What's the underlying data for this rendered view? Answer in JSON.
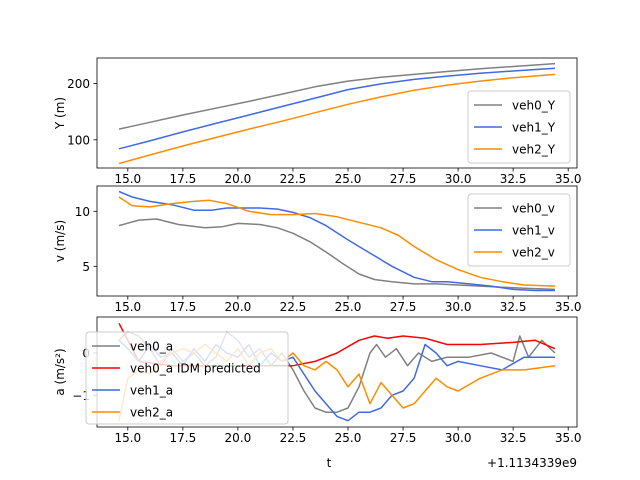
{
  "chart_data": [
    {
      "type": "line",
      "ylabel": "Y (m)",
      "xlim": [
        13.6,
        35.4
      ],
      "ylim": [
        50,
        245
      ],
      "xticks": [
        15.0,
        17.5,
        20.0,
        22.5,
        25.0,
        27.5,
        30.0,
        32.5,
        35.0
      ],
      "xticklabels": [
        "15.0",
        "17.5",
        "20.0",
        "22.5",
        "25.0",
        "27.5",
        "30.0",
        "32.5",
        "35.0"
      ],
      "show_xticklabels": true,
      "yticks": [
        100,
        200
      ],
      "yticklabels": [
        "100",
        "200"
      ],
      "legend_position": "lower-right",
      "series": [
        {
          "name": "veh0_Y",
          "color": "#808080",
          "x": [
            14.6,
            16.0,
            17.5,
            19.0,
            20.5,
            22.0,
            23.5,
            25.0,
            26.5,
            28.0,
            29.5,
            31.0,
            32.5,
            34.4
          ],
          "y": [
            119,
            131,
            144,
            156,
            168,
            181,
            194,
            204,
            211,
            216,
            221,
            226,
            230,
            235
          ]
        },
        {
          "name": "veh1_Y",
          "color": "#4169e1",
          "x": [
            14.6,
            16.0,
            17.5,
            19.0,
            20.5,
            22.0,
            23.5,
            25.0,
            26.5,
            28.0,
            29.5,
            31.0,
            32.5,
            34.4
          ],
          "y": [
            84,
            98,
            114,
            129,
            144,
            159,
            174,
            189,
            199,
            207,
            213,
            218,
            222,
            227
          ]
        },
        {
          "name": "veh2_Y",
          "color": "#ff8c00",
          "x": [
            14.6,
            16.0,
            17.5,
            19.0,
            20.5,
            22.0,
            23.5,
            25.0,
            26.5,
            28.0,
            29.5,
            31.0,
            32.5,
            34.4
          ],
          "y": [
            58,
            73,
            89,
            104,
            119,
            133,
            148,
            163,
            176,
            188,
            197,
            204,
            210,
            216
          ]
        }
      ]
    },
    {
      "type": "line",
      "ylabel": "v (m/s)",
      "xlim": [
        13.6,
        35.4
      ],
      "ylim": [
        2.3,
        12.3
      ],
      "xticks": [
        15.0,
        17.5,
        20.0,
        22.5,
        25.0,
        27.5,
        30.0,
        32.5,
        35.0
      ],
      "xticklabels": [
        "15.0",
        "17.5",
        "20.0",
        "22.5",
        "25.0",
        "27.5",
        "30.0",
        "32.5",
        "35.0"
      ],
      "show_xticklabels": true,
      "yticks": [
        5,
        10
      ],
      "yticklabels": [
        "5",
        "10"
      ],
      "legend_position": "upper-right",
      "series": [
        {
          "name": "veh0_v",
          "color": "#808080",
          "x": [
            14.6,
            15.5,
            16.3,
            17.3,
            18.5,
            19.3,
            20.0,
            21.0,
            21.8,
            22.5,
            23.3,
            24.0,
            24.8,
            25.5,
            26.2,
            27.0,
            28.0,
            29.0,
            30.0,
            31.0,
            32.0,
            33.0,
            34.4
          ],
          "y": [
            8.7,
            9.2,
            9.3,
            8.8,
            8.5,
            8.6,
            8.9,
            8.8,
            8.5,
            8.0,
            7.2,
            6.3,
            5.2,
            4.3,
            3.8,
            3.6,
            3.4,
            3.4,
            3.3,
            3.2,
            3.1,
            3.0,
            2.9
          ]
        },
        {
          "name": "veh1_v",
          "color": "#4169e1",
          "x": [
            14.6,
            15.2,
            16.0,
            17.0,
            18.0,
            18.8,
            19.5,
            20.0,
            21.0,
            21.8,
            22.5,
            23.3,
            24.0,
            25.0,
            26.0,
            27.0,
            28.0,
            28.8,
            29.5,
            30.5,
            31.5,
            32.5,
            33.5,
            34.4
          ],
          "y": [
            11.8,
            11.3,
            10.9,
            10.6,
            10.1,
            10.1,
            10.3,
            10.3,
            10.3,
            10.2,
            9.9,
            9.4,
            8.7,
            7.4,
            6.2,
            5.0,
            4.0,
            3.6,
            3.6,
            3.4,
            3.2,
            2.9,
            2.8,
            2.8
          ]
        },
        {
          "name": "veh2_v",
          "color": "#ff8c00",
          "x": [
            14.6,
            15.2,
            16.0,
            17.0,
            18.0,
            18.7,
            19.5,
            20.5,
            21.5,
            22.5,
            23.5,
            24.5,
            25.5,
            26.5,
            27.3,
            28.0,
            29.0,
            30.0,
            31.0,
            32.0,
            33.0,
            34.4
          ],
          "y": [
            11.3,
            10.5,
            10.4,
            10.7,
            10.9,
            11.0,
            10.7,
            10.0,
            9.7,
            9.7,
            9.8,
            9.5,
            9.0,
            8.5,
            7.8,
            6.8,
            5.6,
            4.7,
            4.0,
            3.6,
            3.3,
            3.2
          ]
        }
      ]
    },
    {
      "type": "line",
      "ylabel": "a (m/s²)",
      "xlabel": "t",
      "offset_text": "+1.1134339e9",
      "xlim": [
        13.6,
        35.4
      ],
      "ylim": [
        -1.75,
        0.85
      ],
      "xticks": [
        15.0,
        17.5,
        20.0,
        22.5,
        25.0,
        27.5,
        30.0,
        32.5,
        35.0
      ],
      "xticklabels": [
        "15.0",
        "17.5",
        "20.0",
        "22.5",
        "25.0",
        "27.5",
        "30.0",
        "32.5",
        "35.0"
      ],
      "show_xticklabels": true,
      "yticks": [
        -1,
        0
      ],
      "yticklabels": [
        "−1",
        "0"
      ],
      "legend_position": "left",
      "series": [
        {
          "name": "veh0_a",
          "color": "#808080",
          "x": [
            14.6,
            15.0,
            15.5,
            16.0,
            16.5,
            17.0,
            17.5,
            18.0,
            18.5,
            19.0,
            19.5,
            20.0,
            20.5,
            21.0,
            21.5,
            22.0,
            22.5,
            23.0,
            23.5,
            24.0,
            24.5,
            25.0,
            25.5,
            26.0,
            26.3,
            26.7,
            27.2,
            27.7,
            28.2,
            28.8,
            29.5,
            30.5,
            31.5,
            32.5,
            32.8,
            33.2,
            33.8,
            34.4
          ],
          "y": [
            0.3,
            0.5,
            0.4,
            0.1,
            -0.3,
            0.1,
            -0.2,
            0.0,
            -0.3,
            -0.1,
            0.5,
            0.3,
            -0.1,
            0.1,
            -0.3,
            0.0,
            -0.4,
            -0.9,
            -1.3,
            -1.4,
            -1.4,
            -1.3,
            -0.8,
            0.0,
            0.2,
            -0.1,
            0.1,
            -0.3,
            0.0,
            -0.2,
            -0.1,
            -0.1,
            0.0,
            -0.2,
            0.4,
            -0.1,
            0.3,
            0.0
          ]
        },
        {
          "name": "veh0_a IDM predicted",
          "color": "#ff0000",
          "x": [
            14.6,
            15.5,
            17.0,
            18.5,
            20.0,
            21.5,
            22.5,
            23.5,
            24.5,
            25.5,
            26.2,
            26.8,
            27.5,
            28.5,
            29.5,
            31.0,
            32.5,
            33.5,
            34.4
          ],
          "y": [
            0.7,
            -0.2,
            -0.3,
            -0.3,
            -0.3,
            -0.3,
            -0.3,
            -0.2,
            0.0,
            0.3,
            0.4,
            0.35,
            0.4,
            0.35,
            0.2,
            0.2,
            0.25,
            0.3,
            0.1
          ]
        },
        {
          "name": "veh1_a",
          "color": "#4169e1",
          "x": [
            14.6,
            15.0,
            15.5,
            16.0,
            16.5,
            17.0,
            17.5,
            18.0,
            18.5,
            19.0,
            19.5,
            20.0,
            20.5,
            21.0,
            21.5,
            22.0,
            22.5,
            23.0,
            23.5,
            24.0,
            24.5,
            25.0,
            25.5,
            26.0,
            26.5,
            27.0,
            27.5,
            28.0,
            28.5,
            29.0,
            29.5,
            30.0,
            31.0,
            32.0,
            33.0,
            34.4
          ],
          "y": [
            0.3,
            0.1,
            -0.2,
            0.2,
            -0.1,
            0.0,
            -0.3,
            0.1,
            -0.2,
            0.2,
            0.0,
            -0.1,
            0.2,
            -0.3,
            0.0,
            -0.2,
            -0.1,
            -0.5,
            -0.9,
            -1.2,
            -1.5,
            -1.6,
            -1.4,
            -1.4,
            -1.3,
            -1.0,
            -0.9,
            -0.6,
            0.2,
            0.0,
            -0.3,
            -0.2,
            -0.3,
            -0.4,
            -0.1,
            -0.1
          ]
        },
        {
          "name": "veh2_a",
          "color": "#ff8c00",
          "x": [
            14.6,
            15.0,
            15.5,
            16.0,
            16.5,
            17.0,
            17.5,
            18.0,
            18.5,
            19.0,
            19.5,
            20.0,
            20.5,
            21.0,
            21.5,
            22.0,
            22.5,
            23.0,
            23.5,
            24.0,
            24.5,
            25.0,
            25.5,
            26.0,
            26.5,
            27.0,
            27.5,
            28.0,
            28.5,
            29.0,
            29.5,
            30.0,
            31.0,
            32.0,
            33.0,
            34.4
          ],
          "y": [
            -1.6,
            -0.6,
            -0.4,
            -0.5,
            -0.2,
            0.0,
            0.1,
            0.0,
            0.2,
            0.0,
            -0.2,
            0.1,
            -0.3,
            0.0,
            0.1,
            -0.2,
            0.0,
            -0.3,
            -0.4,
            -0.2,
            -0.4,
            -0.8,
            -0.5,
            -1.2,
            -0.7,
            -1.0,
            -1.3,
            -1.2,
            -0.9,
            -0.6,
            -0.8,
            -0.9,
            -0.6,
            -0.4,
            -0.4,
            -0.3
          ]
        }
      ]
    }
  ]
}
